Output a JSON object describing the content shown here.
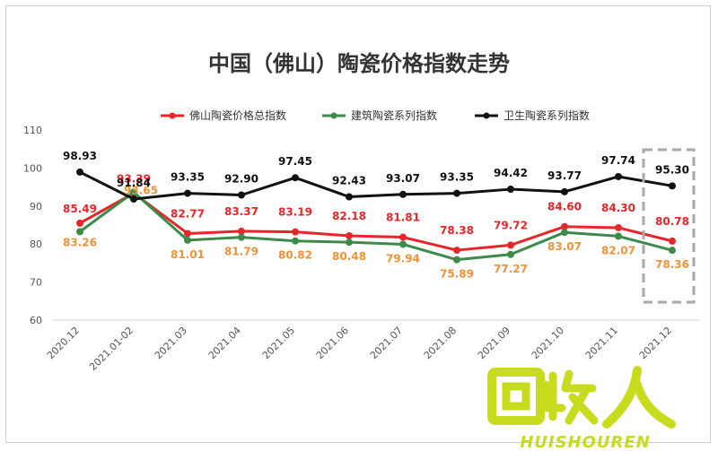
{
  "chart_data": {
    "type": "line",
    "title": "中国（佛山）陶瓷价格指数走势",
    "xlabel": "",
    "ylabel": "",
    "ylim": [
      60,
      110
    ],
    "yticks": [
      "60",
      "70",
      "80",
      "90",
      "100",
      "110"
    ],
    "grid": false,
    "legend": "top-center",
    "categories": [
      "2020.12",
      "2021.01-02",
      "2021.03",
      "2021.04",
      "2021.05",
      "2021.06",
      "2021.07",
      "2021.08",
      "2021.09",
      "2021.10",
      "2021.11",
      "2021.12"
    ],
    "series": [
      {
        "name": "佛山陶瓷价格总指数",
        "color": "#e8262a",
        "label_color": "#e8262a",
        "values": [
          85.49,
          93.39,
          82.77,
          83.37,
          83.19,
          82.18,
          81.81,
          78.38,
          79.72,
          84.6,
          84.3,
          80.78
        ],
        "labels": [
          "85.49",
          "93.39",
          "82.77",
          "83.37",
          "83.19",
          "82.18",
          "81.81",
          "78.38",
          "79.72",
          "84.60",
          "84.30",
          "80.78"
        ]
      },
      {
        "name": "建筑陶瓷系列指数",
        "color": "#3e8a4a",
        "label_color": "#f0923a",
        "values": [
          83.26,
          93.65,
          81.01,
          81.79,
          80.82,
          80.48,
          79.94,
          75.89,
          77.27,
          83.07,
          82.07,
          78.36
        ],
        "labels": [
          "83.26",
          "93.65",
          "81.01",
          "81.79",
          "80.82",
          "80.48",
          "79.94",
          "75.89",
          "77.27",
          "83.07",
          "82.07",
          "78.36"
        ]
      },
      {
        "name": "卫生陶瓷系列指数",
        "color": "#111111",
        "label_color": "#111111",
        "values": [
          98.93,
          91.84,
          93.35,
          92.9,
          97.45,
          92.43,
          93.07,
          93.35,
          94.42,
          93.77,
          97.74,
          95.3
        ],
        "labels": [
          "98.93",
          "91.84",
          "93.35",
          "92.90",
          "97.45",
          "92.43",
          "93.07",
          "93.35",
          "94.42",
          "93.77",
          "97.74",
          "95.30"
        ]
      }
    ],
    "highlight": {
      "category": "2021.12",
      "style": "dashed-box",
      "color": "#a8a8a8"
    }
  },
  "watermark": {
    "text": "回收人",
    "subtext": "HUISHOUREN",
    "color": "#c8dc1e"
  }
}
